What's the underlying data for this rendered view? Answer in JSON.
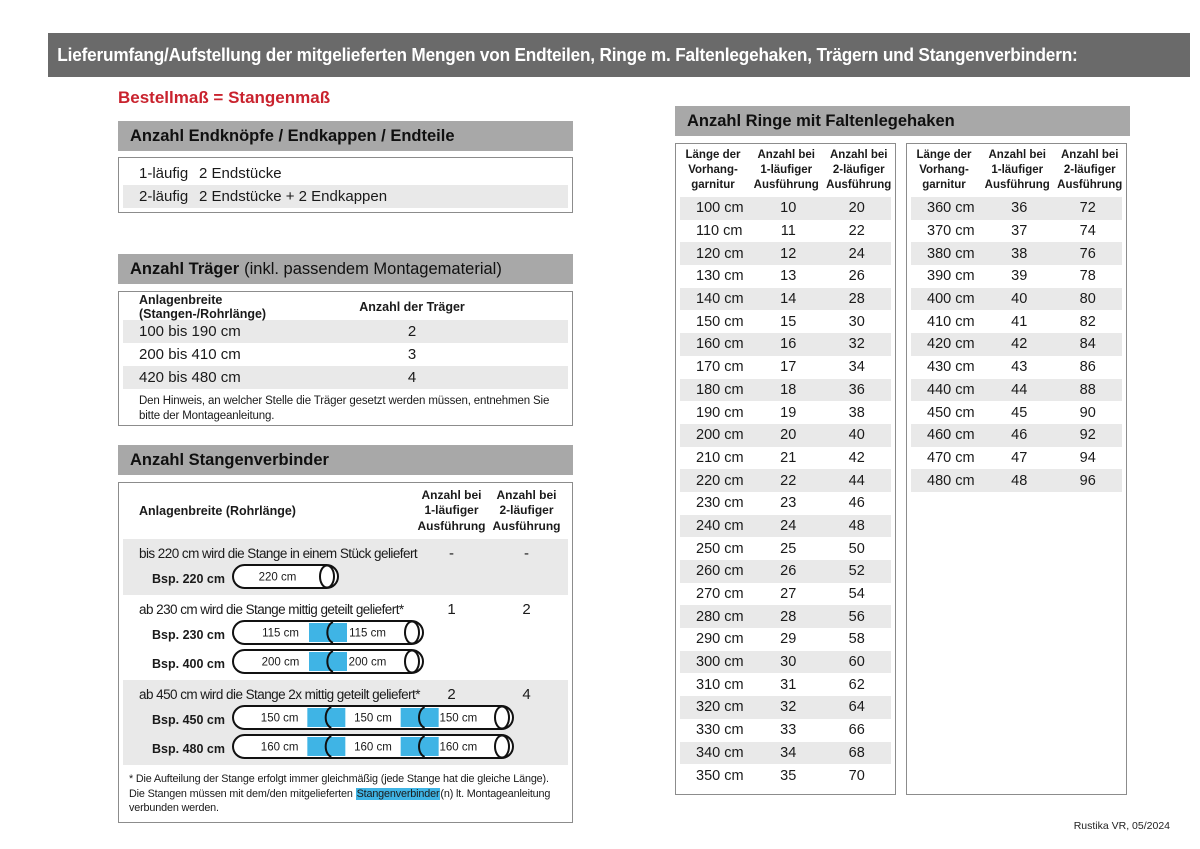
{
  "header": {
    "title": "Lieferumfang/Aufstellung der mitgelieferten Mengen von Endteilen, Ringe m. Faltenlegehaken, Trägern und Stangenverbindern:",
    "subtitle": "Bestellmaß = Stangenmaß"
  },
  "colors": {
    "title_bar_bg": "#6a6a6a",
    "section_bar_bg": "#a8a8a8",
    "accent_red": "#c9232e",
    "connector_blue": "#3fb4e5",
    "stripe_gray": "#e9e9e9"
  },
  "endteile": {
    "title": "Anzahl Endknöpfe / Endkappen / Endteile",
    "rows": [
      {
        "label": "1-läufig",
        "value": "2 Endstücke"
      },
      {
        "label": "2-läufig",
        "value": "2 Endstücke + 2 Endkappen"
      }
    ]
  },
  "traeger": {
    "title_bold": "Anzahl Träger",
    "title_rest": "(inkl. passendem Montagematerial)",
    "col1": "Anlagenbreite (Stangen-/Rohrlänge)",
    "col2": "Anzahl der Träger",
    "rows": [
      {
        "range": "100 bis 190 cm",
        "count": "2"
      },
      {
        "range": "200 bis 410 cm",
        "count": "3"
      },
      {
        "range": "420 bis 480 cm",
        "count": "4"
      }
    ],
    "note": "Den Hinweis, an welcher Stelle die Träger gesetzt werden müssen, entnehmen Sie bitte der Montageanleitung."
  },
  "verbinder": {
    "title": "Anzahl Stangenverbinder",
    "col1": "Anlagenbreite (Rohrlänge)",
    "col2": "Anzahl bei\n1-läufiger\nAusführung",
    "col3": "Anzahl bei\n2-läufiger\nAusführung",
    "blocks": [
      {
        "text": "bis 220 cm wird die Stange in einem Stück geliefert",
        "v1": "-",
        "v2": "-",
        "examples": [
          {
            "label": "Bsp. 220 cm",
            "segments": [
              "220 cm"
            ]
          }
        ]
      },
      {
        "text": "ab 230 cm wird die Stange mittig geteilt geliefert*",
        "v1": "1",
        "v2": "2",
        "examples": [
          {
            "label": "Bsp. 230 cm",
            "segments": [
              "115 cm",
              "115 cm"
            ]
          },
          {
            "label": "Bsp. 400 cm",
            "segments": [
              "200 cm",
              "200 cm"
            ]
          }
        ]
      },
      {
        "text": "ab 450 cm wird die Stange 2x mittig geteilt geliefert*",
        "v1": "2",
        "v2": "4",
        "examples": [
          {
            "label": "Bsp. 450 cm",
            "segments": [
              "150 cm",
              "150 cm",
              "150 cm"
            ]
          },
          {
            "label": "Bsp. 480 cm",
            "segments": [
              "160 cm",
              "160 cm",
              "160 cm"
            ]
          }
        ]
      }
    ],
    "footnote_pre": "* Die Aufteilung der Stange erfolgt immer gleichmäßig (jede Stange hat die gleiche Länge). Die Stangen müssen mit dem/den mitgelieferten ",
    "footnote_highlight": "Stangenverbinder",
    "footnote_post": "(n) lt. Montageanleitung verbunden werden."
  },
  "ringe": {
    "title": "Anzahl Ringe mit Faltenlegehaken",
    "col1": "Länge der\nVorhang-\ngarnitur",
    "col2": "Anzahl bei\n1-läufiger\nAusführung",
    "col3": "Anzahl bei\n2-läufiger\nAusführung",
    "table1": [
      {
        "len": "100 cm",
        "v1": "10",
        "v2": "20"
      },
      {
        "len": "110 cm",
        "v1": "11",
        "v2": "22"
      },
      {
        "len": "120 cm",
        "v1": "12",
        "v2": "24"
      },
      {
        "len": "130 cm",
        "v1": "13",
        "v2": "26"
      },
      {
        "len": "140 cm",
        "v1": "14",
        "v2": "28"
      },
      {
        "len": "150 cm",
        "v1": "15",
        "v2": "30"
      },
      {
        "len": "160 cm",
        "v1": "16",
        "v2": "32"
      },
      {
        "len": "170 cm",
        "v1": "17",
        "v2": "34"
      },
      {
        "len": "180 cm",
        "v1": "18",
        "v2": "36"
      },
      {
        "len": "190 cm",
        "v1": "19",
        "v2": "38"
      },
      {
        "len": "200 cm",
        "v1": "20",
        "v2": "40"
      },
      {
        "len": "210 cm",
        "v1": "21",
        "v2": "42"
      },
      {
        "len": "220 cm",
        "v1": "22",
        "v2": "44"
      },
      {
        "len": "230 cm",
        "v1": "23",
        "v2": "46"
      },
      {
        "len": "240 cm",
        "v1": "24",
        "v2": "48"
      },
      {
        "len": "250 cm",
        "v1": "25",
        "v2": "50"
      },
      {
        "len": "260 cm",
        "v1": "26",
        "v2": "52"
      },
      {
        "len": "270 cm",
        "v1": "27",
        "v2": "54"
      },
      {
        "len": "280 cm",
        "v1": "28",
        "v2": "56"
      },
      {
        "len": "290 cm",
        "v1": "29",
        "v2": "58"
      },
      {
        "len": "300 cm",
        "v1": "30",
        "v2": "60"
      },
      {
        "len": "310 cm",
        "v1": "31",
        "v2": "62"
      },
      {
        "len": "320 cm",
        "v1": "32",
        "v2": "64"
      },
      {
        "len": "330 cm",
        "v1": "33",
        "v2": "66"
      },
      {
        "len": "340 cm",
        "v1": "34",
        "v2": "68"
      },
      {
        "len": "350 cm",
        "v1": "35",
        "v2": "70"
      }
    ],
    "table2": [
      {
        "len": "360 cm",
        "v1": "36",
        "v2": "72"
      },
      {
        "len": "370 cm",
        "v1": "37",
        "v2": "74"
      },
      {
        "len": "380 cm",
        "v1": "38",
        "v2": "76"
      },
      {
        "len": "390 cm",
        "v1": "39",
        "v2": "78"
      },
      {
        "len": "400 cm",
        "v1": "40",
        "v2": "80"
      },
      {
        "len": "410 cm",
        "v1": "41",
        "v2": "82"
      },
      {
        "len": "420 cm",
        "v1": "42",
        "v2": "84"
      },
      {
        "len": "430 cm",
        "v1": "43",
        "v2": "86"
      },
      {
        "len": "440 cm",
        "v1": "44",
        "v2": "88"
      },
      {
        "len": "450 cm",
        "v1": "45",
        "v2": "90"
      },
      {
        "len": "460 cm",
        "v1": "46",
        "v2": "92"
      },
      {
        "len": "470 cm",
        "v1": "47",
        "v2": "94"
      },
      {
        "len": "480 cm",
        "v1": "48",
        "v2": "96"
      }
    ]
  },
  "footer": {
    "text": "Rustika VR, 05/2024"
  }
}
